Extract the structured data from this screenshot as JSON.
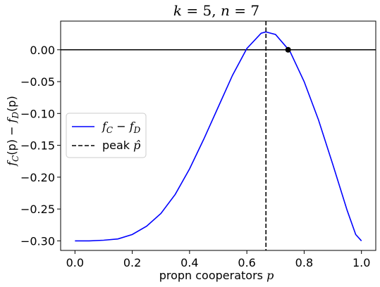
{
  "chart_data": {
    "type": "line",
    "title": "k = 5, n = 7",
    "xlabel": "propn cooperators p",
    "ylabel": "f_C(p) − f_D(p)",
    "xlim": [
      -0.05,
      1.05
    ],
    "ylim": [
      -0.315,
      0.045
    ],
    "xticks": [
      0.0,
      0.2,
      0.4,
      0.6,
      0.8,
      1.0
    ],
    "xtick_labels": [
      "0.0",
      "0.2",
      "0.4",
      "0.6",
      "0.8",
      "1.0"
    ],
    "yticks": [
      0.0,
      -0.05,
      -0.1,
      -0.15,
      -0.2,
      -0.25,
      -0.3
    ],
    "ytick_labels": [
      "0.00",
      "−0.05",
      "−0.10",
      "−0.15",
      "−0.20",
      "−0.25",
      "−0.30"
    ],
    "grid": false,
    "legend_position": "center-left",
    "series": [
      {
        "name": "f_C − f_D",
        "color": "#0000ff",
        "style": "solid",
        "x": [
          0.0,
          0.05,
          0.1,
          0.15,
          0.2,
          0.25,
          0.3,
          0.35,
          0.4,
          0.45,
          0.5,
          0.55,
          0.6,
          0.65,
          0.6667,
          0.7,
          0.75,
          0.8,
          0.85,
          0.9,
          0.95,
          0.98,
          1.0
        ],
        "y": [
          -0.3,
          -0.3,
          -0.299,
          -0.297,
          -0.29,
          -0.277,
          -0.257,
          -0.227,
          -0.187,
          -0.14,
          -0.09,
          -0.04,
          0.002,
          0.026,
          0.028,
          0.024,
          -0.002,
          -0.05,
          -0.11,
          -0.18,
          -0.252,
          -0.29,
          -0.3
        ]
      },
      {
        "name": "peak p̂",
        "color": "#000000",
        "style": "dashed",
        "vline_x": 0.6667
      }
    ],
    "hline_y": 0.0,
    "annotations": [
      {
        "type": "point",
        "x": 0.744,
        "y": 0.0,
        "color": "#000000"
      }
    ],
    "legend": {
      "entries": [
        {
          "label_main": "f",
          "label_sub1": "C",
          "label_mid": " − ",
          "label_main2": "f",
          "label_sub2": "D"
        },
        {
          "label_text": "peak ",
          "label_var": "p̂"
        }
      ]
    },
    "title_parts": {
      "a": "k",
      "eq1": " = 5, ",
      "b": "n",
      "eq2": " = 7"
    },
    "xlabel_parts": {
      "text": "propn cooperators ",
      "var": "p"
    },
    "ylabel_parts": {
      "f1": "f",
      "s1": "C",
      "p1": "(p) − ",
      "f2": "f",
      "s2": "D",
      "p2": "(p)"
    }
  }
}
